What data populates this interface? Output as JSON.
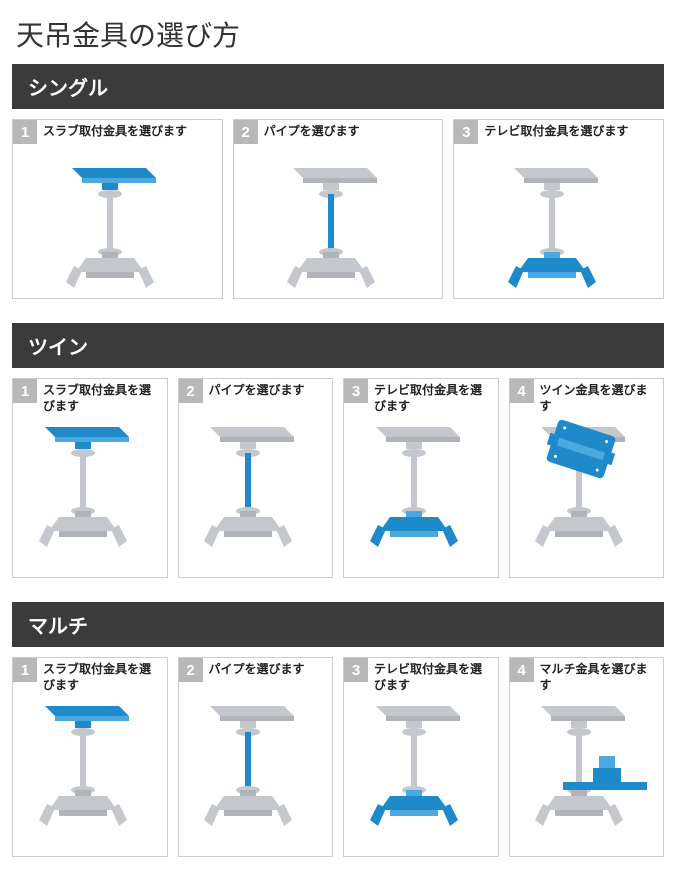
{
  "colors": {
    "page_bg": "#ffffff",
    "title_text": "#333333",
    "header_bg": "#3b3b3b",
    "header_text": "#ffffff",
    "card_border": "#cccccc",
    "step_num_bg": "#b8b8b8",
    "step_num_text": "#ffffff",
    "label_text": "#222222",
    "gray": "#c4c7cb",
    "gray_dark": "#b0b4b9",
    "blue": "#1f8ac9",
    "blue_light": "#4aa9de"
  },
  "title": "天吊金具の選び方",
  "sections": [
    {
      "name": "シングル",
      "steps": [
        {
          "num": "1",
          "label": "スラブ取付金具を選びます",
          "highlight": "slab"
        },
        {
          "num": "2",
          "label": "パイプを選びます",
          "highlight": "pipe"
        },
        {
          "num": "3",
          "label": "テレビ取付金具を選びます",
          "highlight": "tv"
        }
      ]
    },
    {
      "name": "ツイン",
      "steps": [
        {
          "num": "1",
          "label": "スラブ取付金具を選びます",
          "highlight": "slab"
        },
        {
          "num": "2",
          "label": "パイプを選びます",
          "highlight": "pipe"
        },
        {
          "num": "3",
          "label": "テレビ取付金具を選びます",
          "highlight": "tv"
        },
        {
          "num": "4",
          "label": "ツイン金具を選びます",
          "highlight": "twin"
        }
      ]
    },
    {
      "name": "マルチ",
      "steps": [
        {
          "num": "1",
          "label": "スラブ取付金具を選びます",
          "highlight": "slab"
        },
        {
          "num": "2",
          "label": "パイプを選びます",
          "highlight": "pipe"
        },
        {
          "num": "3",
          "label": "テレビ取付金具を選びます",
          "highlight": "tv"
        },
        {
          "num": "4",
          "label": "マルチ金具を選びます",
          "highlight": "multi"
        }
      ]
    }
  ]
}
